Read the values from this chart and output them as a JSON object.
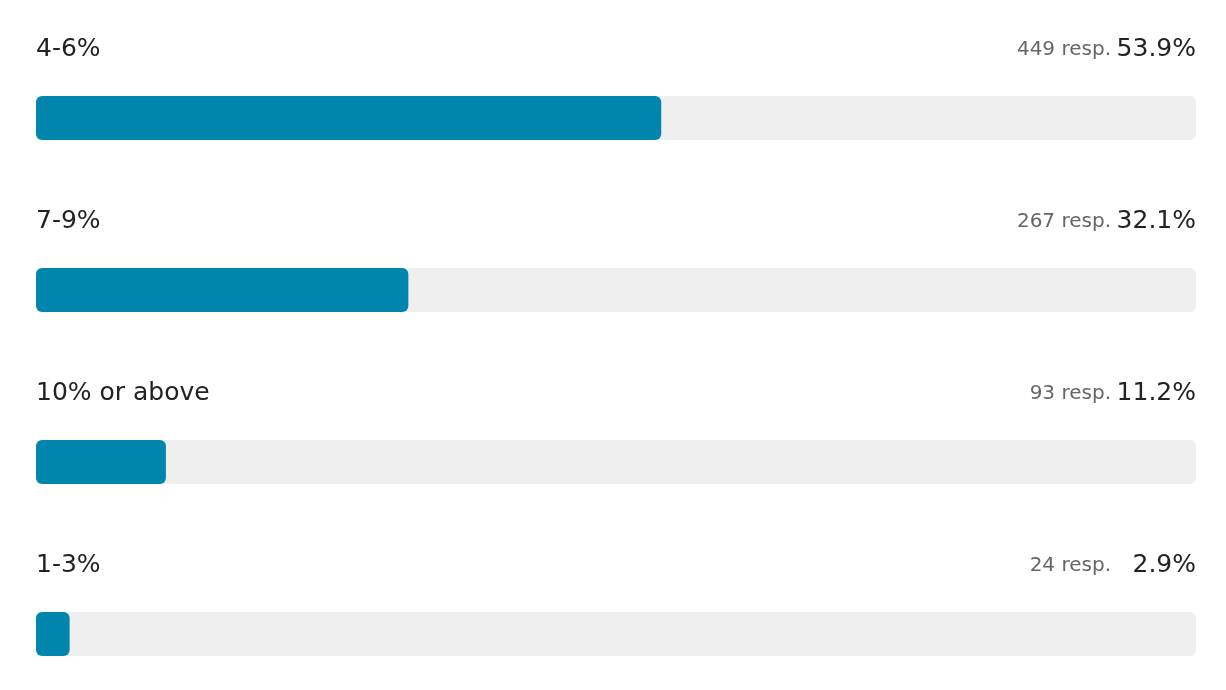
{
  "chart_data": {
    "type": "bar",
    "orientation": "horizontal",
    "categories": [
      "4-6%",
      "7-9%",
      "10% or above",
      "1-3%"
    ],
    "values": [
      53.9,
      32.1,
      11.2,
      2.9
    ],
    "value_labels": [
      "53.9%",
      "32.1%",
      "11.2%",
      "2.9%"
    ],
    "color": "#0086ad",
    "xlim": [
      0,
      100
    ],
    "tick_labels": false,
    "annotations": [
      "449 resp.",
      "267 resp.",
      "93 resp.",
      "24 resp."
    ]
  }
}
